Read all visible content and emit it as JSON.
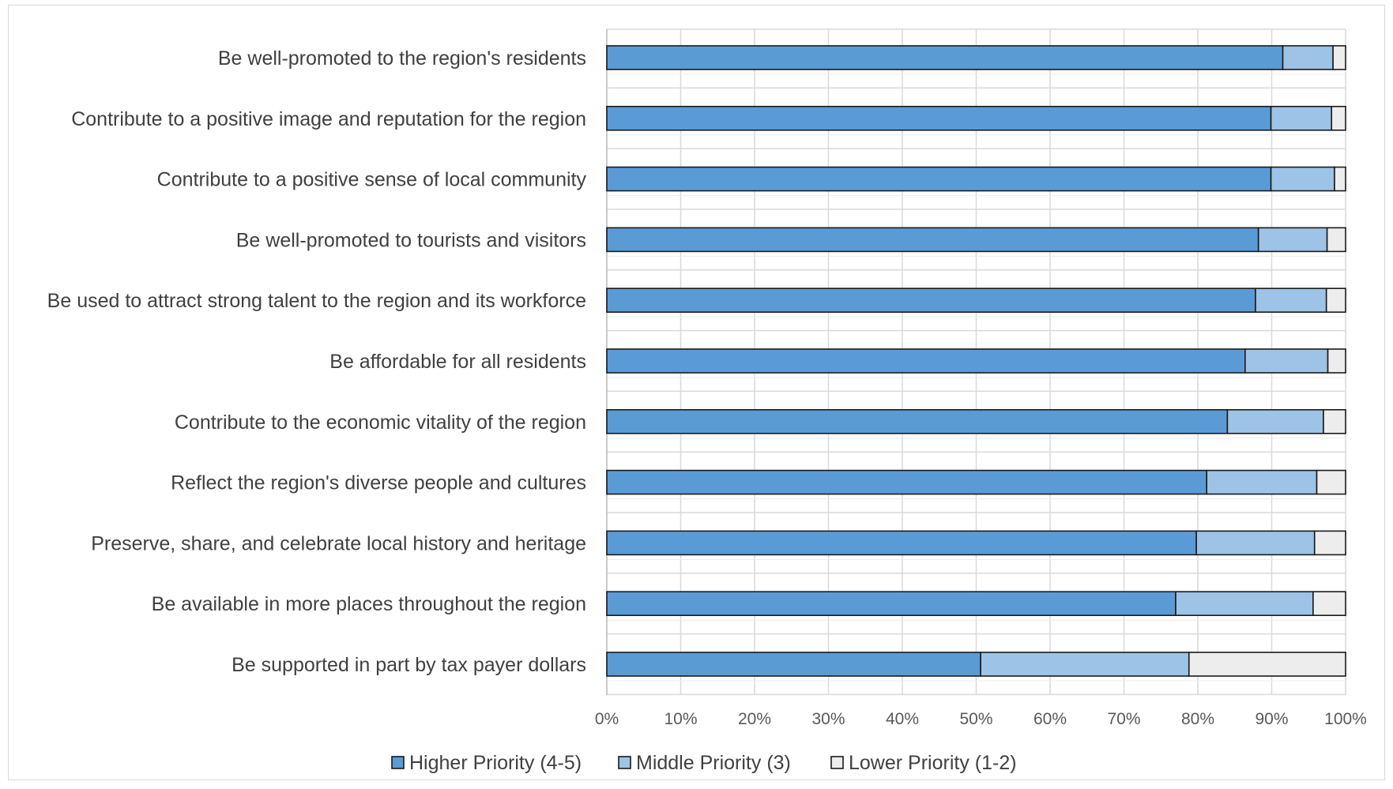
{
  "chart_data": {
    "type": "bar",
    "orientation": "horizontal",
    "stacked": true,
    "normalized": true,
    "categories": [
      "Be well-promoted to the region's residents",
      "Contribute to a positive image and reputation for the region",
      "Contribute to a positive sense of local community",
      "Be well-promoted to tourists and visitors",
      "Be used to attract strong talent to the region and its workforce",
      "Be affordable for all residents",
      "Contribute to the economic vitality of the region",
      "Reflect the region's diverse people and cultures",
      "Preserve, share, and celebrate local history and heritage",
      "Be available in more places throughout the region",
      "Be supported in part by tax payer dollars"
    ],
    "series": [
      {
        "name": "Higher Priority (4-5)",
        "color": "#5b9bd5",
        "values": [
          91.5,
          89.9,
          89.9,
          88.2,
          87.8,
          86.4,
          84.0,
          81.2,
          79.8,
          77.0,
          50.6
        ]
      },
      {
        "name": "Middle Priority (3)",
        "color": "#9dc3e6",
        "values": [
          6.8,
          8.2,
          8.6,
          9.3,
          9.6,
          11.2,
          13.0,
          14.9,
          16.0,
          18.6,
          28.2
        ]
      },
      {
        "name": "Lower Priority (1-2)",
        "color": "#ededed",
        "values": [
          1.7,
          1.9,
          1.5,
          2.5,
          2.6,
          2.4,
          3.0,
          3.9,
          4.2,
          4.4,
          21.2
        ]
      }
    ],
    "xlim": [
      0,
      100
    ],
    "x_ticks": [
      "0%",
      "10%",
      "20%",
      "30%",
      "40%",
      "50%",
      "60%",
      "70%",
      "80%",
      "90%",
      "100%"
    ],
    "grid": true,
    "legend_position": "bottom",
    "title": "",
    "xlabel": "",
    "ylabel": ""
  }
}
